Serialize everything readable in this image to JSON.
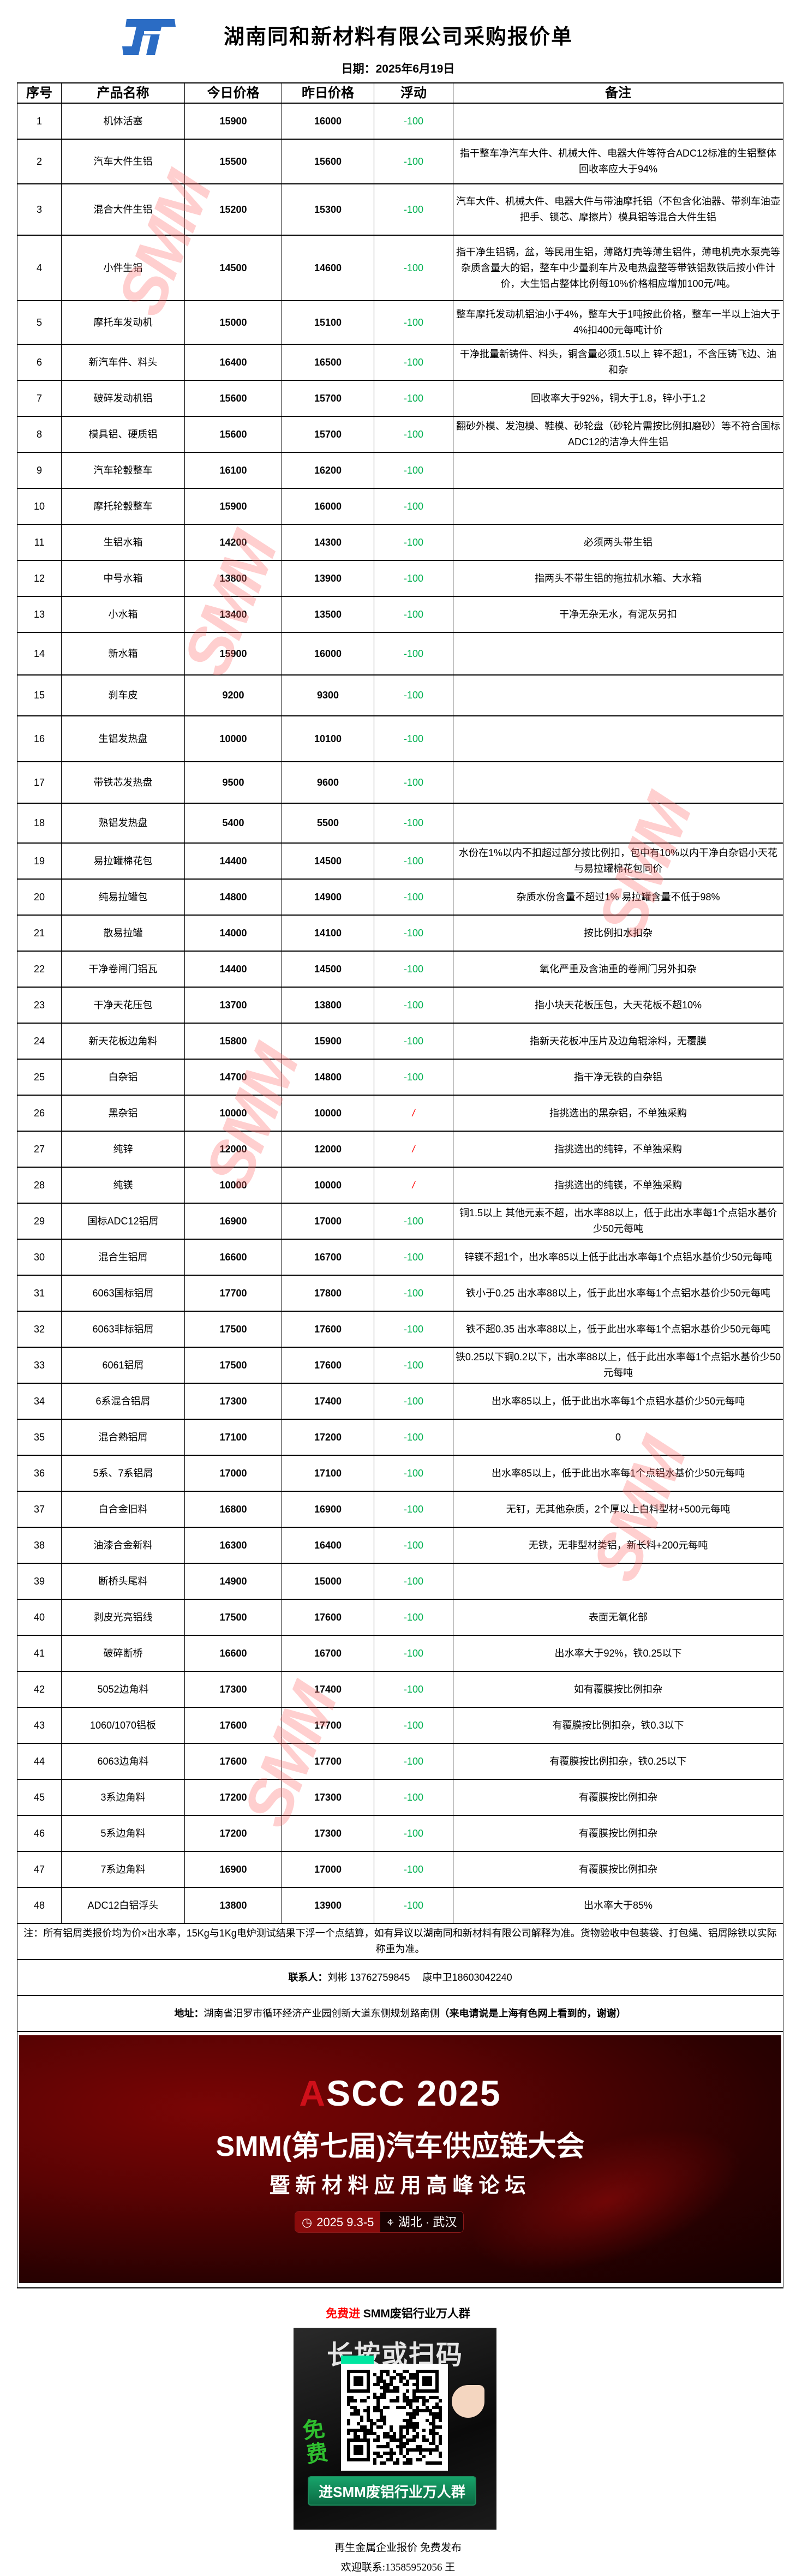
{
  "header": {
    "title": "湖南同和新材料有限公司采购报价单",
    "date": "日期：2025年6月19日",
    "logo_icon": "tonghe-logo-icon",
    "brand_color": "#2b6cc4"
  },
  "table": {
    "columns": [
      "序号",
      "产品名称",
      "今日价格",
      "昨日价格",
      "浮动",
      "备注"
    ],
    "colors": {
      "down": "#00b050",
      "flat": "#ff0000"
    },
    "rows": [
      {
        "no": "1",
        "name": "机体活塞",
        "today": "15900",
        "yesterday": "16000",
        "change": "-100",
        "note": ""
      },
      {
        "no": "2",
        "name": "汽车大件生铝",
        "today": "15500",
        "yesterday": "15600",
        "change": "-100",
        "note": "指干整车净汽车大件、机械大件、电器大件等符合ADC12标准的生铝整体回收率应大于94%"
      },
      {
        "no": "3",
        "name": "混合大件生铝",
        "today": "15200",
        "yesterday": "15300",
        "change": "-100",
        "note": "汽车大件、机械大件、电器大件与带油摩托铝（不包含化油器、带刹车油壶把手、锁芯、摩擦片）模具铝等混合大件生铝"
      },
      {
        "no": "4",
        "name": "小件生铝",
        "today": "14500",
        "yesterday": "14600",
        "change": "-100",
        "note": "指干净生铝锅，盆，等民用生铝，薄路灯壳等薄生铝件，薄电机壳水泵壳等杂质含量大的铝，整车中少量刹车片及电热盘整等带铁铝数铁后按小件计价，大生铝占整体比例每10%价格相应增加100元/吨。"
      },
      {
        "no": "5",
        "name": "摩托车发动机",
        "today": "15000",
        "yesterday": "15100",
        "change": "-100",
        "note": "整车摩托发动机铝油小于4%，整车大于1吨按此价格，整车一半以上油大于4%扣400元每吨计价"
      },
      {
        "no": "6",
        "name": "新汽车件、料头",
        "today": "16400",
        "yesterday": "16500",
        "change": "-100",
        "note": "干净批量新铸件、料头，铜含量必须1.5以上 锌不超1，不含压铸飞边、油和杂"
      },
      {
        "no": "7",
        "name": "破碎发动机铝",
        "today": "15600",
        "yesterday": "15700",
        "change": "-100",
        "note": "回收率大于92%，铜大于1.8，锌小于1.2"
      },
      {
        "no": "8",
        "name": "模具铝、硬质铝",
        "today": "15600",
        "yesterday": "15700",
        "change": "-100",
        "note": "翻砂外模、发泡模、鞋模、砂轮盘（砂轮片需按比例扣磨砂）等不符合国标ADC12的洁净大件生铝"
      },
      {
        "no": "9",
        "name": "汽车轮毂整车",
        "today": "16100",
        "yesterday": "16200",
        "change": "-100",
        "note": ""
      },
      {
        "no": "10",
        "name": "摩托轮毂整车",
        "today": "15900",
        "yesterday": "16000",
        "change": "-100",
        "note": ""
      },
      {
        "no": "11",
        "name": "生铝水箱",
        "today": "14200",
        "yesterday": "14300",
        "change": "-100",
        "note": "必须两头带生铝"
      },
      {
        "no": "12",
        "name": "中号水箱",
        "today": "13800",
        "yesterday": "13900",
        "change": "-100",
        "note": "指两头不带生铝的拖拉机水箱、大水箱"
      },
      {
        "no": "13",
        "name": "小水箱",
        "today": "13400",
        "yesterday": "13500",
        "change": "-100",
        "note": "干净无杂无水，有泥灰另扣"
      },
      {
        "no": "14",
        "name": "新水箱",
        "today": "15900",
        "yesterday": "16000",
        "change": "-100",
        "note": ""
      },
      {
        "no": "15",
        "name": "刹车皮",
        "today": "9200",
        "yesterday": "9300",
        "change": "-100",
        "note": ""
      },
      {
        "no": "16",
        "name": "生铝发热盘",
        "today": "10000",
        "yesterday": "10100",
        "change": "-100",
        "note": ""
      },
      {
        "no": "17",
        "name": "带铁芯发热盘",
        "today": "9500",
        "yesterday": "9600",
        "change": "-100",
        "note": ""
      },
      {
        "no": "18",
        "name": "熟铝发热盘",
        "today": "5400",
        "yesterday": "5500",
        "change": "-100",
        "note": ""
      },
      {
        "no": "19",
        "name": "易拉罐棉花包",
        "today": "14400",
        "yesterday": "14500",
        "change": "-100",
        "note": "水份在1%以内不扣超过部分按比例扣，包中有10%以内干净白杂铝小天花与易拉罐棉花包同价"
      },
      {
        "no": "20",
        "name": "纯易拉罐包",
        "today": "14800",
        "yesterday": "14900",
        "change": "-100",
        "note": "杂质水份含量不超过1% 易拉罐含量不低于98%"
      },
      {
        "no": "21",
        "name": "散易拉罐",
        "today": "14000",
        "yesterday": "14100",
        "change": "-100",
        "note": "按比例扣水扣杂"
      },
      {
        "no": "22",
        "name": "干净卷闸门铝瓦",
        "today": "14400",
        "yesterday": "14500",
        "change": "-100",
        "note": "氧化严重及含油重的卷闸门另外扣杂"
      },
      {
        "no": "23",
        "name": "干净天花压包",
        "today": "13700",
        "yesterday": "13800",
        "change": "-100",
        "note": "指小块天花板压包，大天花板不超10%"
      },
      {
        "no": "24",
        "name": "新天花板边角料",
        "today": "15800",
        "yesterday": "15900",
        "change": "-100",
        "note": "指新天花板冲压片及边角辊涂料，无覆膜"
      },
      {
        "no": "25",
        "name": "白杂铝",
        "today": "14700",
        "yesterday": "14800",
        "change": "-100",
        "note": "指干净无铁的白杂铝"
      },
      {
        "no": "26",
        "name": "黑杂铝",
        "today": "10000",
        "yesterday": "10000",
        "change": "/",
        "note": "指挑选出的黑杂铝，不单独采购"
      },
      {
        "no": "27",
        "name": "纯锌",
        "today": "12000",
        "yesterday": "12000",
        "change": "/",
        "note": "指挑选出的纯锌，不单独采购"
      },
      {
        "no": "28",
        "name": "纯镁",
        "today": "10000",
        "yesterday": "10000",
        "change": "/",
        "note": "指挑选出的纯镁，不单独采购"
      },
      {
        "no": "29",
        "name": "国标ADC12铝屑",
        "today": "16900",
        "yesterday": "17000",
        "change": "-100",
        "note": "铜1.5以上 其他元素不超，出水率88以上，低于此出水率每1个点铝水基价少50元每吨"
      },
      {
        "no": "30",
        "name": "混合生铝屑",
        "today": "16600",
        "yesterday": "16700",
        "change": "-100",
        "note": "锌镁不超1个，出水率85以上低于此出水率每1个点铝水基价少50元每吨"
      },
      {
        "no": "31",
        "name": "6063国标铝屑",
        "today": "17700",
        "yesterday": "17800",
        "change": "-100",
        "note": "铁小于0.25 出水率88以上，低于此出水率每1个点铝水基价少50元每吨"
      },
      {
        "no": "32",
        "name": "6063非标铝屑",
        "today": "17500",
        "yesterday": "17600",
        "change": "-100",
        "note": "铁不超0.35 出水率88以上，低于此出水率每1个点铝水基价少50元每吨"
      },
      {
        "no": "33",
        "name": "6061铝屑",
        "today": "17500",
        "yesterday": "17600",
        "change": "-100",
        "note": "铁0.25以下铜0.2以下，出水率88以上，低于此出水率每1个点铝水基价少50元每吨"
      },
      {
        "no": "34",
        "name": "6系混合铝屑",
        "today": "17300",
        "yesterday": "17400",
        "change": "-100",
        "note": "出水率85以上，低于此出水率每1个点铝水基价少50元每吨"
      },
      {
        "no": "35",
        "name": "混合熟铝屑",
        "today": "17100",
        "yesterday": "17200",
        "change": "-100",
        "note": "0"
      },
      {
        "no": "36",
        "name": "5系、7系铝屑",
        "today": "17000",
        "yesterday": "17100",
        "change": "-100",
        "note": "出水率85以上，低于此出水率每1个点铝水基价少50元每吨"
      },
      {
        "no": "37",
        "name": "白合金旧料",
        "today": "16800",
        "yesterday": "16900",
        "change": "-100",
        "note": "无钉，无其他杂质，2个厚以上白料型材+500元每吨"
      },
      {
        "no": "38",
        "name": "油漆合金新料",
        "today": "16300",
        "yesterday": "16400",
        "change": "-100",
        "note": "无铁，无非型材类铝，新长料+200元每吨"
      },
      {
        "no": "39",
        "name": "断桥头尾料",
        "today": "14900",
        "yesterday": "15000",
        "change": "-100",
        "note": ""
      },
      {
        "no": "40",
        "name": "剥皮光亮铝线",
        "today": "17500",
        "yesterday": "17600",
        "change": "-100",
        "note": "表面无氧化部"
      },
      {
        "no": "41",
        "name": "破碎断桥",
        "today": "16600",
        "yesterday": "16700",
        "change": "-100",
        "note": "出水率大于92%，铁0.25以下"
      },
      {
        "no": "42",
        "name": "5052边角料",
        "today": "17300",
        "yesterday": "17400",
        "change": "-100",
        "note": "如有覆膜按比例扣杂"
      },
      {
        "no": "43",
        "name": "1060/1070铝板",
        "today": "17600",
        "yesterday": "17700",
        "change": "-100",
        "note": "有覆膜按比例扣杂，铁0.3以下"
      },
      {
        "no": "44",
        "name": "6063边角料",
        "today": "17600",
        "yesterday": "17700",
        "change": "-100",
        "note": "有覆膜按比例扣杂，铁0.25以下"
      },
      {
        "no": "45",
        "name": "3系边角料",
        "today": "17200",
        "yesterday": "17300",
        "change": "-100",
        "note": "有覆膜按比例扣杂"
      },
      {
        "no": "46",
        "name": "5系边角料",
        "today": "17200",
        "yesterday": "17300",
        "change": "-100",
        "note": "有覆膜按比例扣杂"
      },
      {
        "no": "47",
        "name": "7系边角料",
        "today": "16900",
        "yesterday": "17000",
        "change": "-100",
        "note": "有覆膜按比例扣杂"
      },
      {
        "no": "48",
        "name": "ADC12白铝浮头",
        "today": "13800",
        "yesterday": "13900",
        "change": "-100",
        "note": "出水率大于85%"
      }
    ],
    "footnote": "注：所有铝屑类报价均为价×出水率，15Kg与1Kg电炉测试结果下浮一个点结算，如有异议以湖南同和新材料有限公司解释为准。货物验收中包装袋、打包绳、铝屑除铁以实际称重为准。",
    "contact_label": "联系人：",
    "contact_value": "刘彬 13762759845　 康中卫18603042240",
    "address_label": "地址：",
    "address_value": "湖南省汨罗市循环经济产业园创新大道东侧规划路南侧",
    "address_bold": "（来电请说是上海有色网上看到的，谢谢）"
  },
  "banner": {
    "event_logo_a": "A",
    "event_logo_rest": "SCC 2025",
    "headline": "SMM(第七届)汽车供应链大会",
    "subheadline": "暨新材料应用高峰论坛",
    "date": "2025 9.3-5",
    "location": "湖北 · 武汉",
    "clock_icon": "clock-icon",
    "location_icon": "location-pin-icon"
  },
  "promo": {
    "highlight": "免费进",
    "text": " SMM废铝行业万人群",
    "highlight_color": "#ff0000",
    "qr_heading": "长按或扫码",
    "qr_free": "免费",
    "qr_button": "进SMM废铝行业万人群",
    "qr_accent": "#00e6a0"
  },
  "footer": {
    "line1": "再生金属企业报价  免费发布",
    "line2": "欢迎联系:13585952056  王"
  },
  "watermark": "SMM"
}
